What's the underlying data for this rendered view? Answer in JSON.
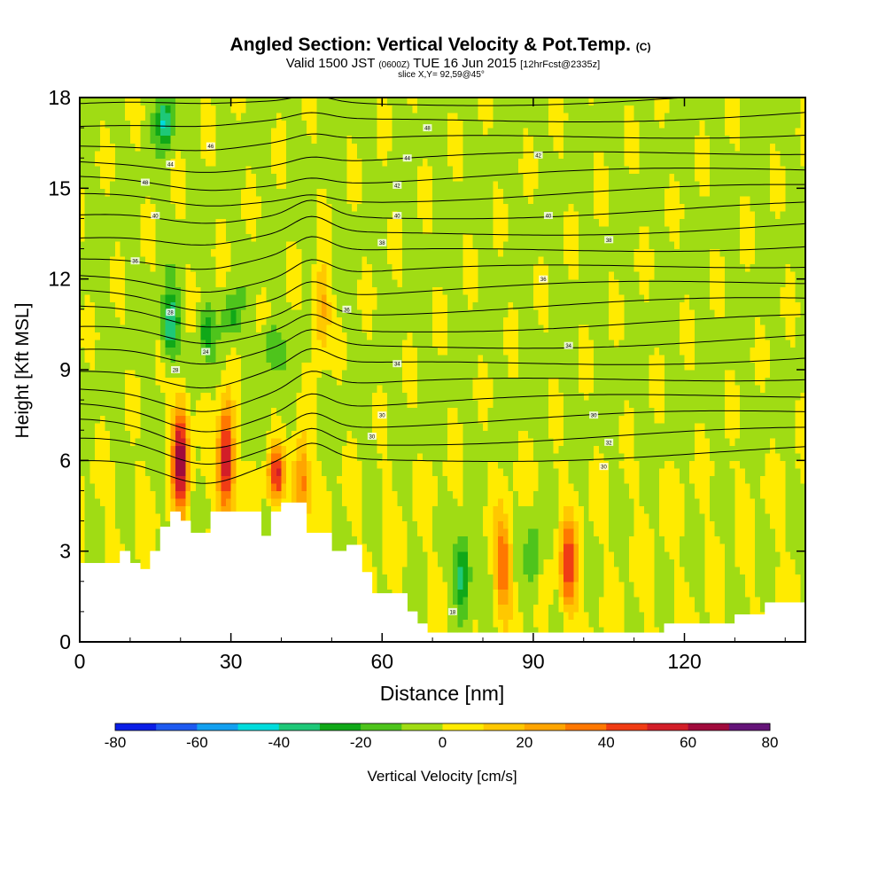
{
  "chart_data": {
    "type": "heatmap",
    "title": "Angled Section: Vertical Velocity & Pot.Temp.",
    "title_unit": "(C)",
    "subtitle_valid": "Valid 1500 JST",
    "subtitle_utc": "(0600Z)",
    "subtitle_date": "TUE 16 Jun 2015",
    "subtitle_fcst": "[12hrFcst@2335z]",
    "slice_label": "slice X,Y= 92,59@45°",
    "xlabel": "Distance [nm]",
    "ylabel": "Height [Kft MSL]",
    "xlim": [
      0,
      144
    ],
    "ylim": [
      0,
      18
    ],
    "x_ticks": [
      0,
      30,
      60,
      90,
      120
    ],
    "y_ticks": [
      0,
      3,
      6,
      9,
      12,
      15,
      18
    ],
    "colorbar": {
      "label": "Vertical Velocity [cm/s]",
      "range": [
        -80,
        80
      ],
      "step": 10,
      "tick_labels": [
        -80,
        -60,
        -40,
        -20,
        0,
        20,
        40,
        60,
        80
      ],
      "colors": [
        "#0a1ee6",
        "#1e5af0",
        "#14a0f0",
        "#00dcdc",
        "#1ec878",
        "#10a818",
        "#4ec41c",
        "#a0dc14",
        "#ffeb00",
        "#ffc800",
        "#ffa500",
        "#ff7800",
        "#f03c14",
        "#d21e28",
        "#a00a3c",
        "#641478"
      ]
    },
    "terrain_height_kft": [
      [
        0,
        2.6
      ],
      [
        5,
        2.6
      ],
      [
        8,
        3.0
      ],
      [
        10,
        2.6
      ],
      [
        12,
        2.4
      ],
      [
        14,
        3.0
      ],
      [
        16,
        3.8
      ],
      [
        18,
        4.3
      ],
      [
        20,
        4.0
      ],
      [
        22,
        3.6
      ],
      [
        24,
        3.6
      ],
      [
        26,
        4.3
      ],
      [
        30,
        4.3
      ],
      [
        34,
        4.3
      ],
      [
        36,
        3.5
      ],
      [
        38,
        4.3
      ],
      [
        40,
        4.6
      ],
      [
        43,
        4.6
      ],
      [
        45,
        3.6
      ],
      [
        47,
        3.6
      ],
      [
        50,
        3.0
      ],
      [
        53,
        3.2
      ],
      [
        56,
        2.3
      ],
      [
        58,
        1.6
      ],
      [
        63,
        1.6
      ],
      [
        65,
        1.0
      ],
      [
        67,
        0.6
      ],
      [
        69,
        0.3
      ],
      [
        75,
        0.3
      ],
      [
        112,
        0.3
      ],
      [
        116,
        0.6
      ],
      [
        122,
        0.6
      ],
      [
        128,
        0.6
      ],
      [
        130,
        0.9
      ],
      [
        134,
        0.9
      ],
      [
        136,
        1.3
      ],
      [
        144,
        1.3
      ]
    ],
    "updraft_cores_cm_s": [
      {
        "x": 20,
        "zbot": 4.3,
        "ztop": 8.0,
        "w": 70
      },
      {
        "x": 29,
        "zbot": 4.3,
        "ztop": 7.8,
        "w": 70
      },
      {
        "x": 39,
        "zbot": 4.6,
        "ztop": 6.5,
        "w": 50
      },
      {
        "x": 44,
        "zbot": 3.6,
        "ztop": 6.8,
        "w": 40
      },
      {
        "x": 48,
        "zbot": 9.5,
        "ztop": 12.5,
        "w": 30
      },
      {
        "x": 84,
        "zbot": 1.0,
        "ztop": 4.0,
        "w": 40
      },
      {
        "x": 97,
        "zbot": 1.0,
        "ztop": 4.0,
        "w": 50
      }
    ],
    "downdraft_cores_cm_s": [
      {
        "x": 17,
        "zbot": 16.5,
        "ztop": 18,
        "w": -40
      },
      {
        "x": 18,
        "zbot": 9.5,
        "ztop": 11.5,
        "w": -40
      },
      {
        "x": 25,
        "zbot": 9.5,
        "ztop": 11.0,
        "w": -20
      },
      {
        "x": 30,
        "zbot": 10.0,
        "ztop": 11.5,
        "w": -20
      },
      {
        "x": 38,
        "zbot": 9.0,
        "ztop": 10.5,
        "w": -20
      },
      {
        "x": 76,
        "zbot": 1.0,
        "ztop": 3.5,
        "w": -40
      },
      {
        "x": 90,
        "zbot": 1.5,
        "ztop": 4.0,
        "w": -20
      }
    ],
    "theta_contour_labels": [
      {
        "text": "48",
        "x": 69,
        "y": 17.0
      },
      {
        "text": "46",
        "x": 26,
        "y": 16.4
      },
      {
        "text": "44",
        "x": 18,
        "y": 15.8
      },
      {
        "text": "44",
        "x": 65,
        "y": 16.0
      },
      {
        "text": "42",
        "x": 91,
        "y": 16.1
      },
      {
        "text": "42",
        "x": 63,
        "y": 15.1
      },
      {
        "text": "48",
        "x": 13,
        "y": 15.2
      },
      {
        "text": "40",
        "x": 15,
        "y": 14.1
      },
      {
        "text": "40",
        "x": 63,
        "y": 14.1
      },
      {
        "text": "40",
        "x": 93,
        "y": 14.1
      },
      {
        "text": "38",
        "x": 60,
        "y": 13.2
      },
      {
        "text": "38",
        "x": 105,
        "y": 13.3
      },
      {
        "text": "36",
        "x": 11,
        "y": 12.6
      },
      {
        "text": "36",
        "x": 92,
        "y": 12.0
      },
      {
        "text": "36",
        "x": 53,
        "y": 11.0
      },
      {
        "text": "28",
        "x": 18,
        "y": 10.9
      },
      {
        "text": "24",
        "x": 25,
        "y": 9.6
      },
      {
        "text": "34",
        "x": 63,
        "y": 9.2
      },
      {
        "text": "34",
        "x": 97,
        "y": 9.8
      },
      {
        "text": "28",
        "x": 19,
        "y": 9.0
      },
      {
        "text": "30",
        "x": 60,
        "y": 7.5
      },
      {
        "text": "30",
        "x": 102,
        "y": 7.5
      },
      {
        "text": "30",
        "x": 58,
        "y": 6.8
      },
      {
        "text": "32",
        "x": 105,
        "y": 6.6
      },
      {
        "text": "30",
        "x": 104,
        "y": 5.8
      },
      {
        "text": "18",
        "x": 74,
        "y": 1.0
      }
    ]
  }
}
